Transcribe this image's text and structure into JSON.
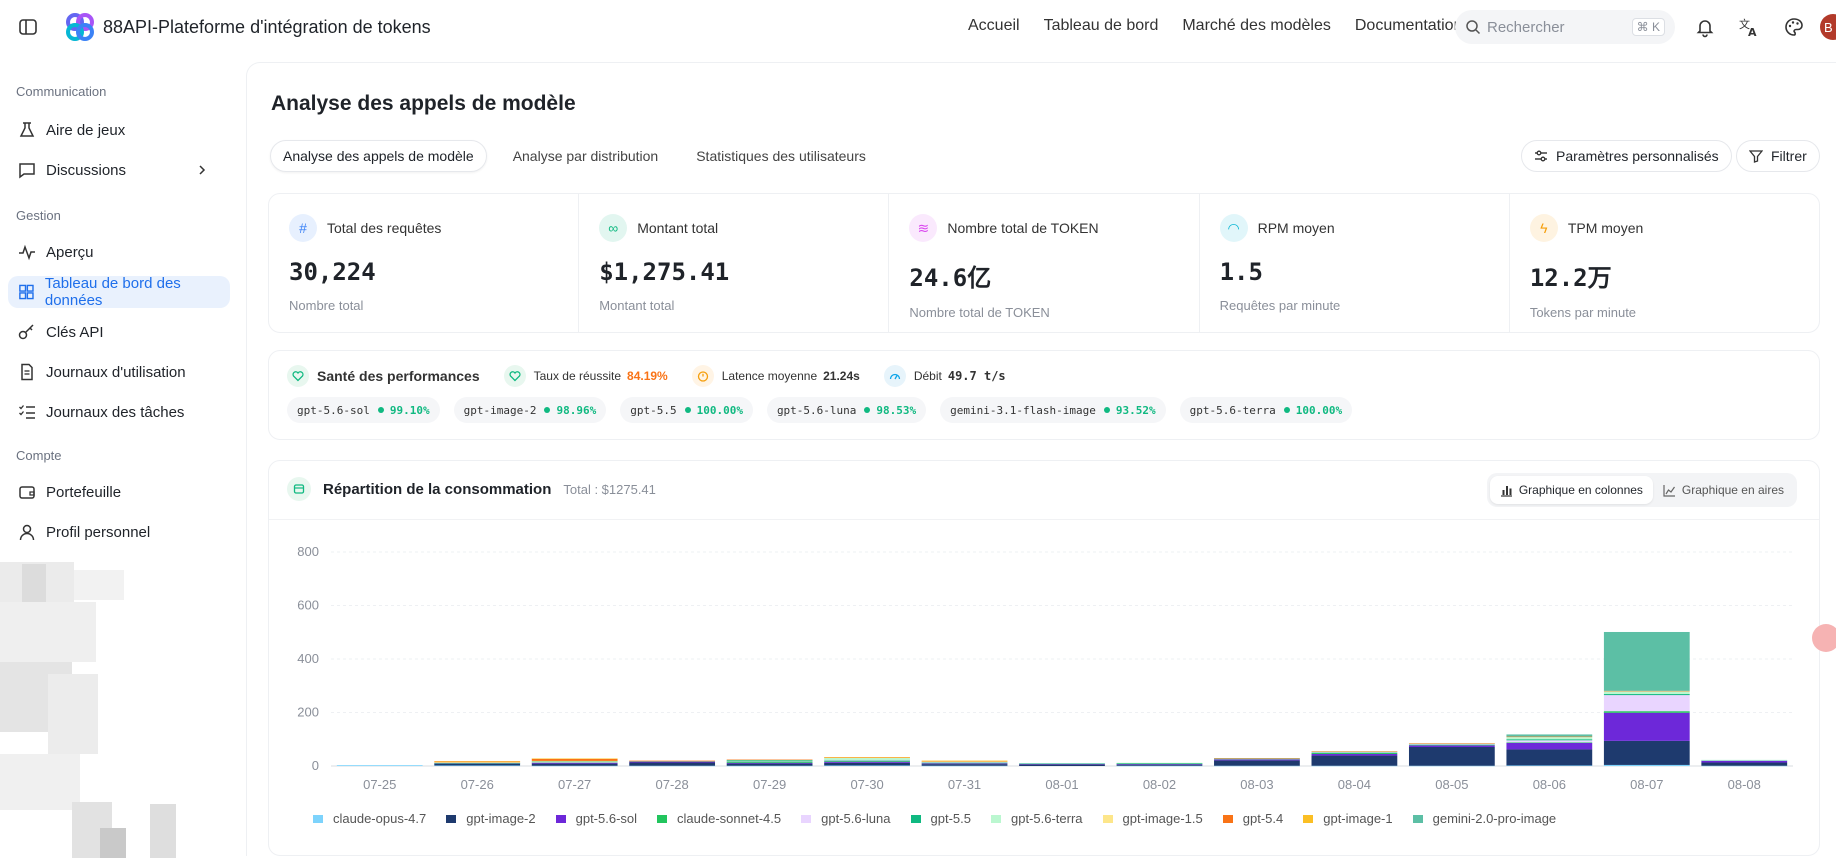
{
  "app": {
    "title": "88API-Plateforme d'intégration de tokens"
  },
  "nav": {
    "items": [
      "Accueil",
      "Tableau de bord",
      "Marché des modèles",
      "Documentation"
    ]
  },
  "search": {
    "placeholder": "Rechercher",
    "shortcut": "⌘ K"
  },
  "avatar": {
    "initial": "B"
  },
  "sidebar": {
    "sections": [
      {
        "title": "Communication",
        "items": [
          {
            "label": "Aire de jeux"
          },
          {
            "label": "Discussions"
          }
        ]
      },
      {
        "title": "Gestion",
        "items": [
          {
            "label": "Aperçu"
          },
          {
            "label": "Tableau de bord des données",
            "active": true
          },
          {
            "label": "Clés API"
          },
          {
            "label": "Journaux d'utilisation"
          },
          {
            "label": "Journaux des tâches"
          }
        ]
      },
      {
        "title": "Compte",
        "items": [
          {
            "label": "Portefeuille"
          },
          {
            "label": "Profil personnel"
          }
        ]
      }
    ]
  },
  "page": {
    "title": "Analyse des appels de modèle"
  },
  "tabs": [
    "Analyse des appels de modèle",
    "Analyse par distribution",
    "Statistiques des utilisateurs"
  ],
  "actions": {
    "custom_params": "Paramètres personnalisés",
    "filter": "Filtrer"
  },
  "stats": [
    {
      "label": "Total des requêtes",
      "value": "30,224",
      "sub": "Nombre total",
      "icon": "hash-icon",
      "color": "#3b82f6"
    },
    {
      "label": "Montant total",
      "value": "$1,275.41",
      "sub": "Montant total",
      "icon": "link-icon",
      "color": "#10b981"
    },
    {
      "label": "Nombre total de TOKEN",
      "value": "24.6亿",
      "sub": "Nombre total de TOKEN",
      "icon": "layers-icon",
      "color": "#d946ef"
    },
    {
      "label": "RPM moyen",
      "value": "1.5",
      "sub": "Requêtes par minute",
      "icon": "gauge-icon",
      "color": "#06b6d4"
    },
    {
      "label": "TPM moyen",
      "value": "12.2万",
      "sub": "Tokens par minute",
      "icon": "bolt-icon",
      "color": "#f59e0b"
    }
  ],
  "performance": {
    "title": "Santé des performances",
    "success_label": "Taux de réussite",
    "success_value": "84.19%",
    "latency_label": "Latence moyenne",
    "latency_value": "21.24s",
    "throughput_label": "Débit",
    "throughput_value": "49.7 t/s",
    "models": [
      {
        "name": "gpt-5.6-sol",
        "pct": "99.10%"
      },
      {
        "name": "gpt-image-2",
        "pct": "98.96%"
      },
      {
        "name": "gpt-5.5",
        "pct": "100.00%"
      },
      {
        "name": "gpt-5.6-luna",
        "pct": "98.53%"
      },
      {
        "name": "gemini-3.1-flash-image",
        "pct": "93.52%"
      },
      {
        "name": "gpt-5.6-terra",
        "pct": "100.00%"
      }
    ]
  },
  "consumption": {
    "title": "Répartition de la consommation",
    "total": "Total : $1275.41",
    "toggle_bar": "Graphique en colonnes",
    "toggle_area": "Graphique en aires"
  },
  "chart_data": {
    "type": "bar",
    "stacked": true,
    "categories": [
      "07-25",
      "07-26",
      "07-27",
      "07-28",
      "07-29",
      "07-30",
      "07-31",
      "08-01",
      "08-02",
      "08-03",
      "08-04",
      "08-05",
      "08-06",
      "08-07",
      "08-08"
    ],
    "ylim": [
      0,
      800
    ],
    "yticks": [
      "800",
      "600",
      "400",
      "200",
      "0"
    ],
    "legend_position": "bottom",
    "grid": true,
    "series": [
      {
        "name": "claude-opus-4.7",
        "color": "#7dd3fc",
        "values": [
          3,
          2,
          1,
          1,
          1,
          2,
          1,
          0,
          1,
          1,
          1,
          1,
          2,
          4,
          1
        ]
      },
      {
        "name": "gpt-image-2",
        "color": "#1e3a6e",
        "values": [
          0,
          6,
          8,
          12,
          8,
          10,
          6,
          6,
          4,
          20,
          38,
          70,
          60,
          90,
          12
        ]
      },
      {
        "name": "gpt-5.6-sol",
        "color": "#6d28d9",
        "values": [
          0,
          2,
          3,
          4,
          3,
          4,
          3,
          2,
          3,
          4,
          6,
          6,
          24,
          105,
          6
        ]
      },
      {
        "name": "claude-sonnet-4.5",
        "color": "#22c55e",
        "values": [
          0,
          1,
          2,
          0,
          5,
          3,
          2,
          0,
          1,
          1,
          4,
          2,
          2,
          6,
          0
        ]
      },
      {
        "name": "gpt-5.6-luna",
        "color": "#e9d5ff",
        "values": [
          0,
          0,
          1,
          0,
          1,
          2,
          1,
          1,
          0,
          1,
          2,
          2,
          8,
          60,
          2
        ]
      },
      {
        "name": "gpt-5.5",
        "color": "#10b981",
        "values": [
          0,
          1,
          2,
          1,
          4,
          2,
          2,
          1,
          2,
          1,
          2,
          2,
          4,
          4,
          1
        ]
      },
      {
        "name": "gpt-5.6-terra",
        "color": "#bbf7d0",
        "values": [
          0,
          1,
          1,
          0,
          1,
          8,
          1,
          0,
          1,
          0,
          1,
          1,
          8,
          10,
          1
        ]
      },
      {
        "name": "gpt-image-1.5",
        "color": "#fde68a",
        "values": [
          0,
          1,
          1,
          1,
          0,
          0,
          1,
          0,
          0,
          0,
          0,
          0,
          0,
          0,
          0
        ]
      },
      {
        "name": "gpt-5.4",
        "color": "#f97316",
        "values": [
          0,
          3,
          8,
          1,
          1,
          1,
          2,
          0,
          0,
          1,
          1,
          1,
          2,
          2,
          0
        ]
      },
      {
        "name": "gpt-image-1",
        "color": "#fbbf24",
        "values": [
          0,
          1,
          1,
          0,
          0,
          1,
          1,
          0,
          0,
          0,
          0,
          0,
          0,
          0,
          0
        ]
      },
      {
        "name": "gemini-2.0-pro-image",
        "color": "#5cbfa5",
        "values": [
          0,
          0,
          0,
          0,
          0,
          0,
          0,
          0,
          0,
          0,
          0,
          0,
          8,
          220,
          0
        ]
      }
    ]
  }
}
